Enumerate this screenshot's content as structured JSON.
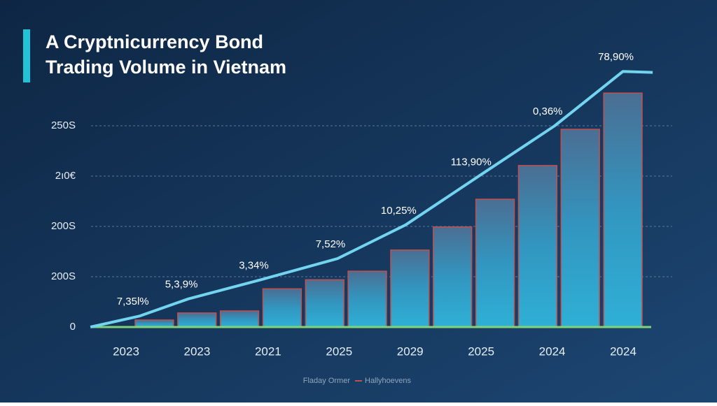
{
  "chart_data": {
    "type": "bar_line",
    "title_lines": [
      "A Cryptnicurrency Bond",
      "Trading Volume in Vietnam"
    ],
    "categories": [
      null,
      null,
      null,
      null,
      null,
      null,
      null,
      null,
      null,
      null,
      null,
      null
    ],
    "xtick_labels": [
      "2023",
      "2023",
      "2021",
      "2025",
      "2029",
      "2025",
      "2024",
      "2024"
    ],
    "ylim": [
      0,
      5.2
    ],
    "yticks": [
      {
        "value": 0,
        "label": "0"
      },
      {
        "value": 1,
        "label": "200S"
      },
      {
        "value": 2,
        "label": "200S"
      },
      {
        "value": 3,
        "label": "2ı0€"
      },
      {
        "value": 4,
        "label": "250S"
      }
    ],
    "grid": true,
    "series": [
      {
        "name": "Fladay Ormer",
        "color": "#2ea9cf",
        "edge": "#c4504e",
        "values": [
          0.14,
          0.28,
          0.32,
          0.76,
          0.94,
          1.11,
          1.53,
          1.99,
          2.54,
          3.21,
          3.93,
          4.65
        ]
      },
      {
        "name": "Hallyhoevens",
        "color": "#72d4ef",
        "x": [
          -1,
          0.16,
          1.3,
          3,
          4.8,
          6.4,
          8.1,
          9.9,
          11.5,
          12.2
        ],
        "values": [
          0,
          0.22,
          0.56,
          0.94,
          1.36,
          2.03,
          2.99,
          4.0,
          5.08,
          5.06
        ]
      }
    ],
    "annotations": [
      "7,35l%",
      "5,3,9%",
      "3,34%",
      "7,52%",
      "10,25%",
      "113,90%",
      "0,36%",
      "78,90%"
    ]
  }
}
